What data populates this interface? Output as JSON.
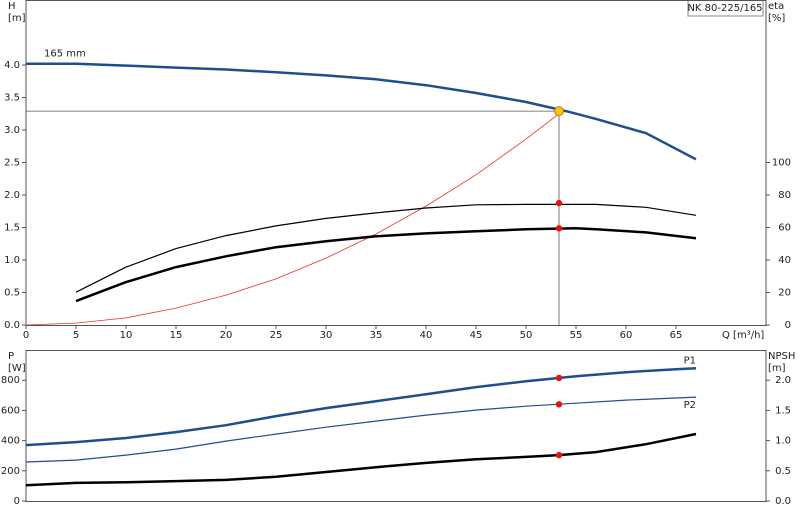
{
  "chart_data": [
    {
      "type": "line",
      "title": "NK 80-225/165",
      "xlabel": "Q [m³/h]",
      "ylabel": [
        "H",
        "[m]"
      ],
      "y2label": [
        "eta",
        "[%]"
      ],
      "xlim": [
        0,
        74
      ],
      "xticks": [
        0,
        5,
        10,
        15,
        20,
        25,
        30,
        35,
        40,
        45,
        50,
        55,
        60,
        65
      ],
      "ylim": [
        0,
        5
      ],
      "yticks": [
        {
          "value": 0,
          "label": "0.0"
        },
        0.5,
        {
          "value": 1,
          "label": "1.0"
        },
        1.5,
        {
          "value": 2,
          "label": "2.0"
        },
        2.5,
        {
          "value": 3,
          "label": "3.0"
        },
        3.5,
        {
          "value": 4,
          "label": "4.0"
        }
      ],
      "y2lim": [
        0,
        200
      ],
      "y2ticks": [
        0,
        20,
        40,
        60,
        80,
        100
      ],
      "grid": false,
      "series": [
        {
          "name": "165 mm",
          "color": "#1f4e8c",
          "axis": "y",
          "width": 2.5,
          "x": [
            0,
            5,
            10,
            15,
            20,
            25,
            30,
            35,
            40,
            45,
            50,
            54,
            57,
            62,
            67
          ],
          "values": [
            4.02,
            4.02,
            3.99,
            3.96,
            3.93,
            3.89,
            3.84,
            3.78,
            3.69,
            3.57,
            3.43,
            3.29,
            3.17,
            2.95,
            2.55
          ]
        },
        {
          "color": "#e8322a",
          "axis": "y",
          "width": 0.8,
          "x": [
            0,
            5,
            10,
            15,
            20,
            25,
            30,
            35,
            40,
            45,
            50,
            53.3
          ],
          "values": [
            0,
            0.03,
            0.11,
            0.26,
            0.46,
            0.71,
            1.03,
            1.4,
            1.83,
            2.31,
            2.86,
            3.25
          ]
        },
        {
          "color": "#000000",
          "axis": "y2",
          "width": 1.2,
          "x": [
            5,
            10,
            15,
            20,
            25,
            30,
            35,
            40,
            45,
            50,
            55,
            57,
            62,
            67
          ],
          "values": [
            20.2,
            35.6,
            47,
            55,
            61,
            65.6,
            69,
            72,
            74,
            74.2,
            74.2,
            74.2,
            72.4,
            67.5
          ]
        },
        {
          "color": "#000000",
          "axis": "y2",
          "width": 2.5,
          "x": [
            5,
            10,
            15,
            20,
            25,
            30,
            35,
            40,
            45,
            50,
            55,
            57,
            62,
            67
          ],
          "values": [
            14.7,
            26.4,
            35.6,
            42.3,
            47.9,
            51.5,
            54.6,
            56.4,
            57.7,
            58.9,
            59.5,
            58.9,
            57,
            53.4
          ]
        }
      ],
      "points": [
        {
          "x": 53.3,
          "y": 3.29,
          "axis": "y",
          "color": "#f5c518",
          "crosshair": true
        },
        {
          "x": 53.3,
          "y": 75,
          "axis": "y2",
          "color": "#e8120c"
        },
        {
          "x": 53.3,
          "y": 59.5,
          "axis": "y2",
          "color": "#e8120c"
        }
      ]
    },
    {
      "type": "line",
      "ylabel": [
        "P",
        "[W]"
      ],
      "y2label": [
        "NPSH",
        "[m]"
      ],
      "xlim": [
        0,
        74
      ],
      "ylim": [
        0,
        1000
      ],
      "yticks": [
        0,
        200,
        400,
        600,
        800
      ],
      "y2lim": [
        0,
        2.5
      ],
      "y2ticks": [
        {
          "value": 0,
          "label": "0.0"
        },
        0.5,
        {
          "value": 1,
          "label": "1.0"
        },
        1.5,
        {
          "value": 2,
          "label": "2.0"
        }
      ],
      "grid": false,
      "series": [
        {
          "name": "P1",
          "color": "#1f4e8c",
          "axis": "y",
          "width": 2.5,
          "x": [
            0,
            5,
            10,
            15,
            20,
            25,
            30,
            35,
            40,
            45,
            50,
            55,
            60,
            65,
            67
          ],
          "values": [
            370,
            390,
            417,
            456,
            502,
            562,
            615,
            661,
            707,
            754,
            793,
            826,
            853,
            873,
            879
          ]
        },
        {
          "name": "P2",
          "color": "#1f4e8c",
          "axis": "y",
          "width": 1.2,
          "x": [
            0,
            5,
            10,
            15,
            20,
            25,
            30,
            35,
            40,
            45,
            50,
            55,
            60,
            67
          ],
          "values": [
            258,
            271,
            304,
            344,
            397,
            443,
            489,
            529,
            569,
            602,
            628,
            648,
            668,
            688
          ]
        },
        {
          "color": "#000000",
          "axis": "y2",
          "width": 2.5,
          "x": [
            0,
            5,
            10,
            15,
            20,
            25,
            30,
            35,
            40,
            45,
            50,
            53.3,
            57,
            62,
            67
          ],
          "values": [
            0.26,
            0.3,
            0.31,
            0.33,
            0.35,
            0.4,
            0.48,
            0.56,
            0.63,
            0.69,
            0.73,
            0.76,
            0.81,
            0.94,
            1.11
          ]
        }
      ],
      "points": [
        {
          "x": 53.3,
          "y": 815,
          "axis": "y",
          "color": "#e8120c"
        },
        {
          "x": 53.3,
          "y": 640,
          "axis": "y",
          "color": "#e8120c"
        },
        {
          "x": 53.3,
          "y": 0.76,
          "axis": "y2",
          "color": "#e8120c"
        }
      ]
    }
  ]
}
